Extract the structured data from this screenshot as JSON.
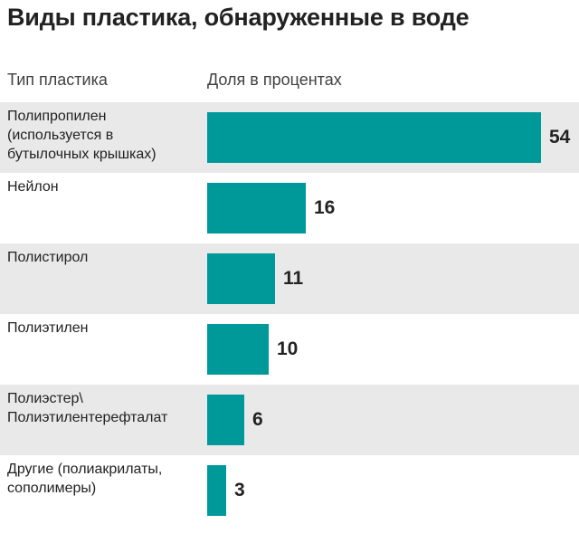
{
  "title": "Виды пластика, обнаруженные в воде",
  "column_headers": {
    "type": "Тип пластика",
    "share": "Доля в процентах"
  },
  "colors": {
    "bar": "#00999a",
    "row_shade": "#e9e9e9"
  },
  "chart_data": {
    "type": "bar",
    "orientation": "horizontal",
    "categories": [
      "Полипропилен\n(используется в\nбутылочных крышках)",
      "Нейлон",
      "Полистирол",
      "Полиэтилен",
      "Полиэстер\\\nПолиэтилентерефталат",
      "Другие (полиакрилаты,\nсополимеры)"
    ],
    "values": [
      54,
      16,
      11,
      10,
      6,
      3
    ],
    "title": "Виды пластика, обнаруженные в воде",
    "xlabel": "Доля в процентах",
    "ylabel": "Тип пластика",
    "xlim": [
      0,
      54
    ],
    "grid": false,
    "legend": "none"
  }
}
